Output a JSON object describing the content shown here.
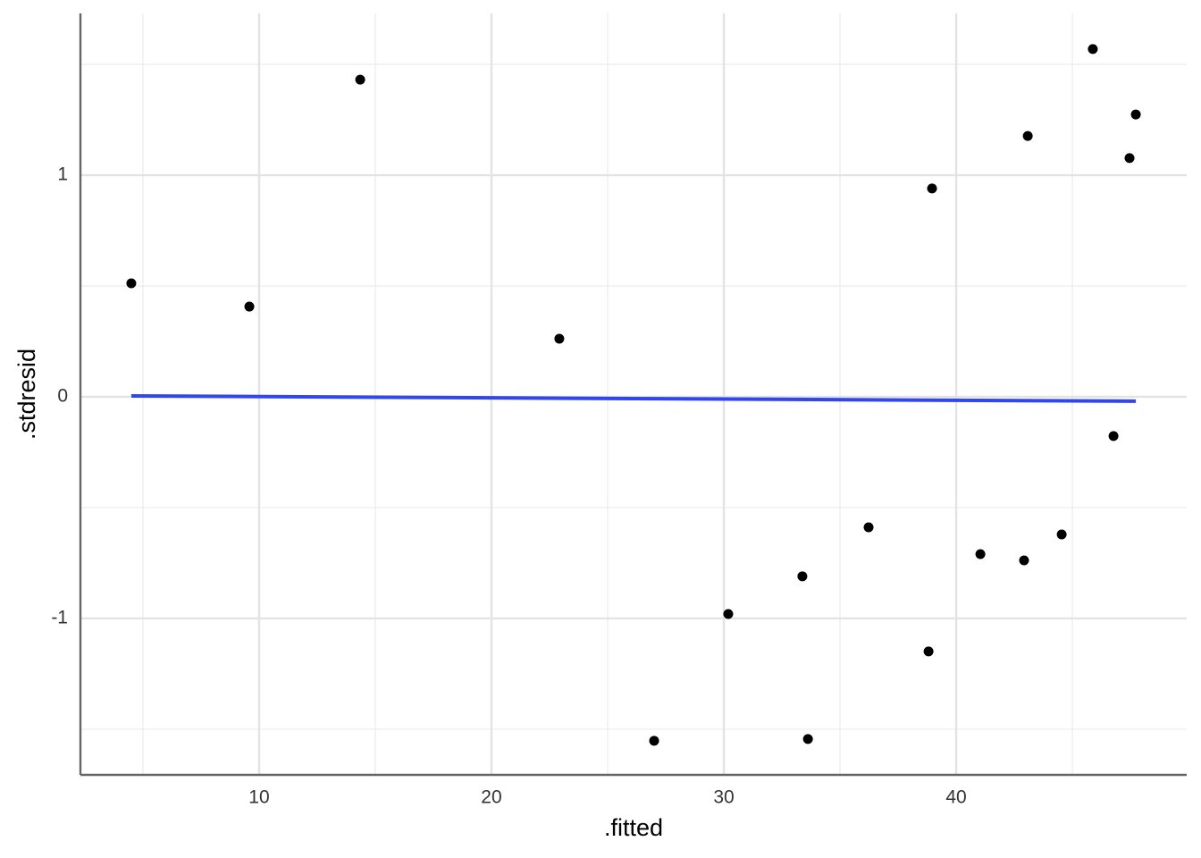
{
  "chart_data": {
    "type": "scatter",
    "x_label": ".fitted",
    "y_label": ".stdresid",
    "xlim": [
      2.31,
      49.92
    ],
    "ylim": [
      -1.706,
      1.73
    ],
    "xticks": [
      10,
      20,
      30,
      40
    ],
    "yticks": [
      -1,
      0,
      1
    ],
    "xminor": [
      5,
      15,
      25,
      35,
      45
    ],
    "yminor": [
      -1.5,
      -0.5,
      0.5,
      1.5
    ],
    "grid": true,
    "series": [
      {
        "name": "points",
        "color": "#000000",
        "x": [
          4.5,
          9.58,
          14.35,
          22.92,
          27.0,
          30.19,
          33.38,
          33.62,
          36.23,
          38.81,
          38.96,
          41.04,
          42.92,
          43.08,
          44.54,
          45.88,
          46.77,
          47.46,
          47.73
        ],
        "values": [
          0.512,
          0.407,
          1.431,
          0.262,
          -1.552,
          -0.98,
          -0.81,
          -1.544,
          -0.589,
          -1.149,
          0.94,
          -0.71,
          -0.738,
          1.177,
          -0.621,
          1.569,
          -0.177,
          1.077,
          1.274
        ]
      },
      {
        "name": "fit",
        "color": "#3246f0",
        "x": [
          4.5,
          47.73
        ],
        "values": [
          0.004,
          -0.02
        ]
      }
    ]
  }
}
